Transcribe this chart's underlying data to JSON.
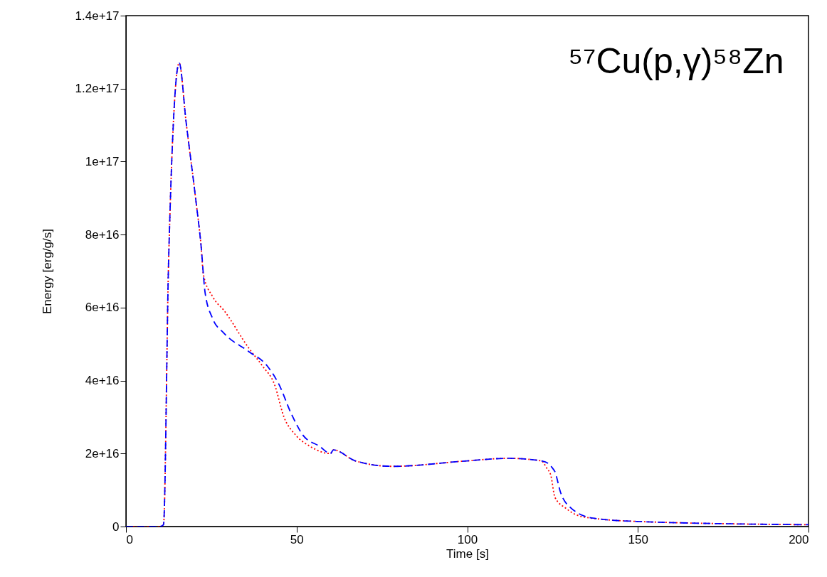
{
  "chart_data": {
    "type": "line",
    "title": "⁵⁷Cu(p,γ)⁵⁸Zn",
    "xlabel": "Time [s]",
    "ylabel": "Energy [erg/g/s]",
    "xlim": [
      0,
      200
    ],
    "xticks": [
      0,
      50,
      100,
      150,
      200
    ],
    "ylim": [
      0,
      1.4e+17
    ],
    "yticks": [
      0,
      {
        "value": 2e+16,
        "label": "2e+16"
      },
      {
        "value": 4e+16,
        "label": "4e+16"
      },
      {
        "value": 6e+16,
        "label": "6e+16"
      },
      {
        "value": 8e+16,
        "label": "8e+16"
      },
      {
        "value": 1e+17,
        "label": "1e+17"
      },
      {
        "value": 1.2e+17,
        "label": "1.2e+17"
      },
      {
        "value": 1.4e+17,
        "label": "1.4e+17"
      }
    ],
    "grid": false,
    "marker": "none",
    "series": [
      {
        "color": "#ff0000",
        "line_style": "dotted",
        "x": [
          0,
          10,
          11,
          12.5,
          15.6,
          17.6,
          20.4,
          22.0,
          22.7,
          25.4,
          28.9,
          35.9,
          40.0,
          43.5,
          46.3,
          49.8,
          53.9,
          59.9,
          60.8,
          67.2,
          78,
          100,
          112,
          121.7,
          123.3,
          124.5,
          125.7,
          128.9,
          133.7,
          149.7,
          200
        ],
        "values": [
          0,
          0,
          500000000000000.0,
          7.3e+16,
          1.27e+17,
          1.11e+17,
          9e+16,
          7.7e+16,
          6.9e+16,
          6.3e+16,
          5.9e+16,
          4.9e+16,
          4.4e+16,
          3.9e+16,
          3e+16,
          2.5e+16,
          2.2e+16,
          2e+16,
          2.1e+16,
          1.8e+16,
          1.65e+16,
          1.8e+16,
          1.87e+16,
          1.8e+16,
          1.6e+16,
          1.4e+16,
          8000000000000000.0,
          5000000000000000.0,
          2700000000000000.0,
          1400000000000000.0,
          500000000000000.0
        ]
      },
      {
        "color": "#0000ff",
        "line_style": "dashed",
        "x": [
          0,
          10,
          11,
          12.5,
          15.6,
          17.6,
          20.4,
          22.0,
          23.2,
          25.4,
          28.7,
          35.9,
          41.4,
          44.8,
          48.4,
          51.9,
          56.7,
          59.9,
          60.8,
          67.2,
          78,
          100,
          112,
          121.7,
          124.1,
          125,
          125.7,
          127.3,
          130.5,
          136.9,
          149.7,
          200
        ],
        "values": [
          0,
          0,
          500000000000000.0,
          7.3e+16,
          1.27e+17,
          1.11e+17,
          9e+16,
          7.7e+16,
          6.4e+16,
          5.7e+16,
          5.3e+16,
          4.8e+16,
          4.4e+16,
          3.9e+16,
          3.1e+16,
          2.5e+16,
          2.2e+16,
          2e+16,
          2.1e+16,
          1.8e+16,
          1.65e+16,
          1.8e+16,
          1.87e+16,
          1.8e+16,
          1.7e+16,
          1.6e+16,
          1.5e+16,
          9500000000000000.0,
          5000000000000000.0,
          2300000000000000.0,
          1400000000000000.0,
          500000000000000.0
        ]
      }
    ]
  }
}
